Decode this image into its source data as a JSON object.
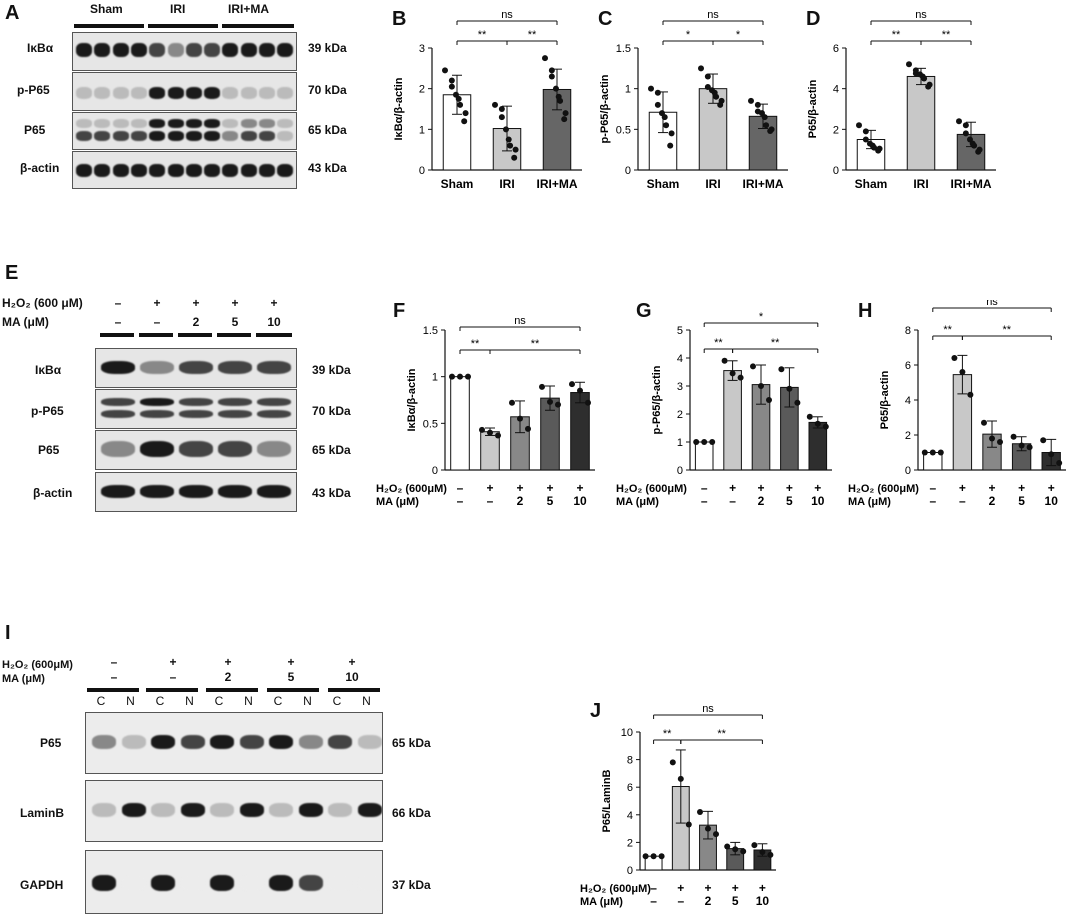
{
  "panels": {
    "A": "A",
    "B": "B",
    "C": "C",
    "D": "D",
    "E": "E",
    "F": "F",
    "G": "G",
    "H": "H",
    "I": "I",
    "J": "J"
  },
  "panel_a": {
    "groups": [
      "Sham",
      "IRI",
      "IRI+MA"
    ],
    "rows": [
      {
        "name": "IκBα",
        "kda": "39 kDa"
      },
      {
        "name": "p-P65",
        "kda": "70 kDa"
      },
      {
        "name": "P65",
        "kda": "65 kDa"
      },
      {
        "name": "β-actin",
        "kda": "43 kDa"
      }
    ]
  },
  "panel_e": {
    "h2o2_label": "H₂O₂ (600  μM)",
    "ma_label": "MA (μM)",
    "h2o2": [
      "–",
      "+",
      "+",
      "+",
      "+"
    ],
    "ma": [
      "–",
      "–",
      "2",
      "5",
      "10"
    ],
    "rows": [
      {
        "name": "IκBα",
        "kda": "39 kDa"
      },
      {
        "name": "p-P65",
        "kda": "70 kDa"
      },
      {
        "name": "P65",
        "kda": "65 kDa"
      },
      {
        "name": "β-actin",
        "kda": "43 kDa"
      }
    ]
  },
  "panel_i": {
    "h2o2_label": "H₂O₂ (600μM)",
    "ma_label": "MA   (μM)",
    "h2o2": [
      "–",
      "+",
      "+",
      "+",
      "+"
    ],
    "ma": [
      "–",
      "–",
      "2",
      "5",
      "10"
    ],
    "fractions": [
      "C",
      "N",
      "C",
      "N",
      "C",
      "N",
      "C",
      "N",
      "C",
      "N"
    ],
    "rows": [
      {
        "name": "P65",
        "kda": "65 kDa"
      },
      {
        "name": "LaminB",
        "kda": "66 kDa"
      },
      {
        "name": "GAPDH",
        "kda": "37 kDa"
      }
    ]
  },
  "chart_data": [
    {
      "panel": "B",
      "type": "bar",
      "categories": [
        "Sham",
        "IRI",
        "IRI+MA"
      ],
      "values": [
        1.85,
        1.02,
        1.98
      ],
      "errors": [
        0.48,
        0.55,
        0.5
      ],
      "points": [
        [
          2.45,
          2.2,
          2.05,
          1.85,
          1.75,
          1.6,
          1.4,
          1.2
        ],
        [
          1.6,
          1.5,
          1.3,
          1.0,
          0.75,
          0.6,
          0.5,
          0.3
        ],
        [
          2.75,
          2.45,
          2.3,
          2.0,
          1.8,
          1.7,
          1.4,
          1.25
        ]
      ],
      "colors": [
        "#ffffff",
        "#c8c8c8",
        "#666666"
      ],
      "ylabel": "IκBα/β-actin",
      "ylim": [
        0,
        3
      ],
      "yticks": [
        0,
        1,
        2,
        3
      ],
      "sig": [
        {
          "from": 0,
          "to": 1,
          "label": "**",
          "level": 0
        },
        {
          "from": 1,
          "to": 2,
          "label": "**",
          "level": 0
        },
        {
          "from": 0,
          "to": 2,
          "label": "ns",
          "level": 1
        }
      ],
      "tick_labels": [
        "Sham",
        "IRI",
        "IRI+MA"
      ]
    },
    {
      "panel": "C",
      "type": "bar",
      "categories": [
        "Sham",
        "IRI",
        "IRI+MA"
      ],
      "values": [
        0.71,
        1.0,
        0.66
      ],
      "errors": [
        0.25,
        0.18,
        0.15
      ],
      "points": [
        [
          1.0,
          0.95,
          0.8,
          0.7,
          0.65,
          0.55,
          0.45,
          0.3
        ],
        [
          1.25,
          1.15,
          1.02,
          0.98,
          0.95,
          0.9,
          0.85,
          0.8
        ],
        [
          0.85,
          0.8,
          0.72,
          0.7,
          0.65,
          0.55,
          0.5,
          0.48
        ]
      ],
      "colors": [
        "#ffffff",
        "#c8c8c8",
        "#666666"
      ],
      "ylabel": "p-P65/β-actin",
      "ylim": [
        0,
        1.5
      ],
      "yticks": [
        0,
        0.5,
        1.0,
        1.5
      ],
      "sig": [
        {
          "from": 0,
          "to": 1,
          "label": "*",
          "level": 0
        },
        {
          "from": 1,
          "to": 2,
          "label": "*",
          "level": 0
        },
        {
          "from": 0,
          "to": 2,
          "label": "ns",
          "level": 1
        }
      ],
      "tick_labels": [
        "Sham",
        "IRI",
        "IRI+MA"
      ]
    },
    {
      "panel": "D",
      "type": "bar",
      "categories": [
        "Sham",
        "IRI",
        "IRI+MA"
      ],
      "values": [
        1.5,
        4.6,
        1.75
      ],
      "errors": [
        0.45,
        0.4,
        0.6
      ],
      "points": [
        [
          2.2,
          1.9,
          1.5,
          1.3,
          1.2,
          1.1,
          1.05,
          0.95
        ],
        [
          5.2,
          4.9,
          4.75,
          4.7,
          4.6,
          4.5,
          4.2,
          4.1
        ],
        [
          2.4,
          2.2,
          1.8,
          1.5,
          1.3,
          1.2,
          1.0,
          0.9
        ]
      ],
      "colors": [
        "#ffffff",
        "#c8c8c8",
        "#666666"
      ],
      "ylabel": "P65/β-actin",
      "ylim": [
        0,
        6
      ],
      "yticks": [
        0,
        2,
        4,
        6
      ],
      "sig": [
        {
          "from": 0,
          "to": 1,
          "label": "**",
          "level": 0
        },
        {
          "from": 1,
          "to": 2,
          "label": "**",
          "level": 0
        },
        {
          "from": 0,
          "to": 2,
          "label": "ns",
          "level": 1
        }
      ],
      "tick_labels": [
        "Sham",
        "IRI",
        "IRI+MA"
      ]
    },
    {
      "panel": "F",
      "type": "bar",
      "categories": [
        "–/–",
        "+/–",
        "+/2",
        "+/5",
        "+/10"
      ],
      "values": [
        1.0,
        0.41,
        0.57,
        0.77,
        0.83
      ],
      "errors": [
        0,
        0.04,
        0.17,
        0.13,
        0.11
      ],
      "points": [
        [
          1.0,
          1.0,
          1.0
        ],
        [
          0.43,
          0.4,
          0.37
        ],
        [
          0.72,
          0.55,
          0.44
        ],
        [
          0.89,
          0.73,
          0.7
        ],
        [
          0.92,
          0.85,
          0.72
        ]
      ],
      "colors": [
        "#ffffff",
        "#c8c8c8",
        "#888888",
        "#5a5a5a",
        "#2e2e2e"
      ],
      "ylabel": "IκBα/β-actin",
      "ylim": [
        0,
        1.5
      ],
      "yticks": [
        0,
        0.5,
        1.0,
        1.5
      ],
      "sig": [
        {
          "from": 0,
          "to": 1,
          "label": "**",
          "level": 0
        },
        {
          "from": 1,
          "to": 4,
          "label": "**",
          "level": 0
        },
        {
          "from": 0,
          "to": 4,
          "label": "ns",
          "level": 1
        }
      ],
      "h2o2_label": "H₂O₂ (600μM)",
      "ma_label": "MA   (μM)",
      "h2o2": [
        "–",
        "+",
        "+",
        "+",
        "+"
      ],
      "ma": [
        "–",
        "–",
        "2",
        "5",
        "10"
      ]
    },
    {
      "panel": "G",
      "type": "bar",
      "categories": [
        "–/–",
        "+/–",
        "+/2",
        "+/5",
        "+/10"
      ],
      "values": [
        1.0,
        3.55,
        3.05,
        2.95,
        1.7
      ],
      "errors": [
        0,
        0.35,
        0.7,
        0.7,
        0.2
      ],
      "points": [
        [
          1.0,
          1.0,
          1.0
        ],
        [
          3.9,
          3.45,
          3.3
        ],
        [
          3.7,
          3.0,
          2.5
        ],
        [
          3.6,
          2.9,
          2.4
        ],
        [
          1.9,
          1.65,
          1.55
        ]
      ],
      "colors": [
        "#ffffff",
        "#c8c8c8",
        "#888888",
        "#5a5a5a",
        "#2e2e2e"
      ],
      "ylabel": "p-P65/β-actin",
      "ylim": [
        0,
        5
      ],
      "yticks": [
        0,
        1,
        2,
        3,
        4,
        5
      ],
      "sig": [
        {
          "from": 0,
          "to": 1,
          "label": "**",
          "level": 0
        },
        {
          "from": 1,
          "to": 4,
          "label": "**",
          "level": 0
        },
        {
          "from": 0,
          "to": 4,
          "label": "*",
          "level": 1
        }
      ],
      "h2o2_label": "H₂O₂ (600μM)",
      "ma_label": "MA   (μM)",
      "h2o2": [
        "–",
        "+",
        "+",
        "+",
        "+"
      ],
      "ma": [
        "–",
        "–",
        "2",
        "5",
        "10"
      ]
    },
    {
      "panel": "H",
      "type": "bar",
      "categories": [
        "–/–",
        "+/–",
        "+/2",
        "+/5",
        "+/10"
      ],
      "values": [
        1.0,
        5.45,
        2.05,
        1.5,
        1.0
      ],
      "errors": [
        0,
        1.1,
        0.75,
        0.4,
        0.75
      ],
      "points": [
        [
          1.0,
          1.0,
          1.0
        ],
        [
          6.4,
          5.6,
          4.3
        ],
        [
          2.7,
          1.8,
          1.6
        ],
        [
          1.9,
          1.4,
          1.3
        ],
        [
          1.7,
          0.9,
          0.4
        ]
      ],
      "colors": [
        "#ffffff",
        "#c8c8c8",
        "#888888",
        "#5a5a5a",
        "#2e2e2e"
      ],
      "ylabel": "P65/β-actin",
      "ylim": [
        0,
        8
      ],
      "yticks": [
        0,
        2,
        4,
        6,
        8
      ],
      "sig": [
        {
          "from": 0,
          "to": 1,
          "label": "**",
          "level": 0
        },
        {
          "from": 1,
          "to": 4,
          "label": "**",
          "level": 0
        },
        {
          "from": 0,
          "to": 4,
          "label": "ns",
          "level": 1
        }
      ],
      "h2o2_label": "H₂O₂ (600μM)",
      "ma_label": "MA   (μM)",
      "h2o2": [
        "–",
        "+",
        "+",
        "+",
        "+"
      ],
      "ma": [
        "–",
        "–",
        "2",
        "5",
        "10"
      ]
    },
    {
      "panel": "J",
      "type": "bar",
      "categories": [
        "–/–",
        "+/–",
        "+/2",
        "+/5",
        "+/10"
      ],
      "values": [
        1.0,
        6.05,
        3.25,
        1.55,
        1.45
      ],
      "errors": [
        0,
        2.65,
        1.0,
        0.45,
        0.45
      ],
      "points": [
        [
          1.0,
          1.0,
          1.0
        ],
        [
          7.8,
          6.6,
          3.3
        ],
        [
          4.2,
          3.0,
          2.6
        ],
        [
          1.7,
          1.5,
          1.35
        ],
        [
          1.8,
          1.3,
          1.1
        ]
      ],
      "colors": [
        "#ffffff",
        "#c8c8c8",
        "#888888",
        "#5a5a5a",
        "#2e2e2e"
      ],
      "ylabel": "P65/LaminB",
      "ylim": [
        0,
        10
      ],
      "yticks": [
        0,
        2,
        4,
        6,
        8,
        10
      ],
      "sig": [
        {
          "from": 0,
          "to": 1,
          "label": "**",
          "level": 0
        },
        {
          "from": 1,
          "to": 4,
          "label": "**",
          "level": 0
        },
        {
          "from": 0,
          "to": 4,
          "label": "ns",
          "level": 1
        }
      ],
      "h2o2_label": "H₂O₂ (600μM)",
      "ma_label": "MA   (μM)",
      "h2o2": [
        "–",
        "+",
        "+",
        "+",
        "+"
      ],
      "ma": [
        "–",
        "–",
        "2",
        "5",
        "10"
      ]
    }
  ]
}
